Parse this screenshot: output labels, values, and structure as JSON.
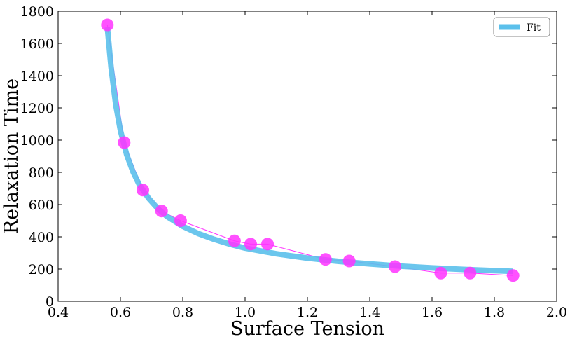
{
  "chart_data": {
    "type": "scatter",
    "title": "",
    "xlabel": "Surface Tension",
    "ylabel": "Relaxation Time",
    "xlim": [
      0.4,
      2.0
    ],
    "ylim": [
      0,
      1800
    ],
    "xticks": [
      0.4,
      0.6,
      0.8,
      1.0,
      1.2,
      1.4,
      1.6,
      1.8,
      2.0
    ],
    "xtick_labels": [
      "0.4",
      "0.6",
      "0.8",
      "1.0",
      "1.2",
      "1.4",
      "1.6",
      "1.8",
      "2.0"
    ],
    "yticks": [
      0,
      200,
      400,
      600,
      800,
      1000,
      1200,
      1400,
      1600,
      1800
    ],
    "ytick_labels": [
      "0",
      "200",
      "400",
      "600",
      "800",
      "1000",
      "1200",
      "1400",
      "1600",
      "1800"
    ],
    "grid": false,
    "legend_position": "top-right",
    "series": [
      {
        "style": "markers-with-thin-line",
        "color": "#ff33ff",
        "x": [
          0.558,
          0.612,
          0.672,
          0.732,
          0.793,
          0.966,
          1.018,
          1.072,
          1.258,
          1.334,
          1.481,
          1.628,
          1.722,
          1.86
        ],
        "y": [
          1715,
          985,
          690,
          560,
          500,
          375,
          355,
          355,
          260,
          250,
          215,
          175,
          175,
          160
        ]
      },
      {
        "name": "Fit",
        "style": "thick-line",
        "color": "#5bc0eb",
        "x": [
          0.558,
          0.57,
          0.585,
          0.6,
          0.62,
          0.64,
          0.66,
          0.69,
          0.72,
          0.75,
          0.8,
          0.85,
          0.9,
          0.95,
          1.0,
          1.1,
          1.2,
          1.3,
          1.4,
          1.5,
          1.6,
          1.7,
          1.8,
          1.86
        ],
        "y": [
          1700,
          1450,
          1220,
          1060,
          910,
          805,
          725,
          640,
          575,
          525,
          465,
          420,
          385,
          355,
          330,
          295,
          268,
          248,
          232,
          218,
          207,
          198,
          190,
          186
        ]
      }
    ]
  }
}
